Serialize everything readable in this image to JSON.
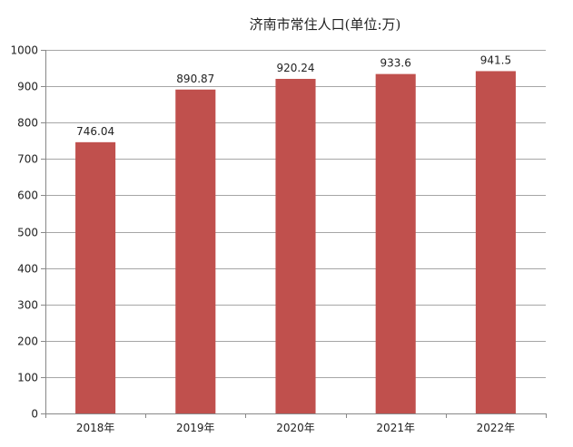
{
  "chart_data": {
    "type": "bar",
    "title": "济南市常住人口(单位:万)",
    "categories": [
      "2018年",
      "2019年",
      "2020年",
      "2021年",
      "2022年"
    ],
    "values": [
      746.04,
      890.87,
      920.24,
      933.6,
      941.5
    ],
    "data_labels": [
      "746.04",
      "890.87",
      "920.24",
      "933.6",
      "941.5"
    ],
    "ylim": [
      0,
      1000
    ],
    "yticks": [
      "0",
      "100",
      "200",
      "300",
      "400",
      "500",
      "600",
      "700",
      "800",
      "900",
      "1000"
    ],
    "grid": true,
    "legend": "none",
    "bar_color": "#c0504d"
  }
}
